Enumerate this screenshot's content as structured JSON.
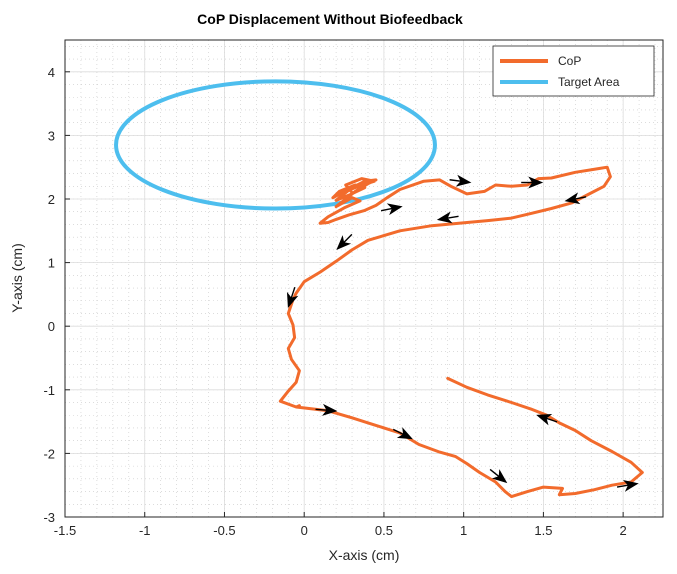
{
  "chart_data": {
    "type": "line",
    "title": "CoP Displacement Without Biofeedback",
    "xlabel": "X-axis (cm)",
    "ylabel": "Y-axis (cm)",
    "xlim": [
      -1.5,
      2.25
    ],
    "ylim": [
      -3,
      4.5
    ],
    "xticks": [
      -1.5,
      -1,
      -0.5,
      0,
      0.5,
      1,
      1.5,
      2
    ],
    "xtick_labels": [
      "-1.5",
      "-1",
      "-0.5",
      "0",
      "0.5",
      "1",
      "1.5",
      "2"
    ],
    "yticks": [
      -3,
      -2,
      -1,
      0,
      1,
      2,
      3,
      4
    ],
    "ytick_labels": [
      "-3",
      "-2",
      "-1",
      "0",
      "1",
      "2",
      "3",
      "4"
    ],
    "grid": true,
    "minor_grid": true,
    "legend_position": "top-right",
    "legend": [
      "CoP",
      "Target Area"
    ],
    "series": [
      {
        "name": "CoP",
        "color": "#F26B2C",
        "points": [
          [
            0.9,
            -0.82
          ],
          [
            1.02,
            -0.96
          ],
          [
            1.15,
            -1.08
          ],
          [
            1.3,
            -1.2
          ],
          [
            1.42,
            -1.3
          ],
          [
            1.52,
            -1.4
          ],
          [
            1.6,
            -1.52
          ],
          [
            1.7,
            -1.64
          ],
          [
            1.8,
            -1.8
          ],
          [
            1.93,
            -1.97
          ],
          [
            2.05,
            -2.14
          ],
          [
            2.12,
            -2.3
          ],
          [
            2.05,
            -2.45
          ],
          [
            1.93,
            -2.5
          ],
          [
            1.82,
            -2.57
          ],
          [
            1.7,
            -2.63
          ],
          [
            1.6,
            -2.65
          ],
          [
            1.62,
            -2.55
          ],
          [
            1.5,
            -2.53
          ],
          [
            1.4,
            -2.6
          ],
          [
            1.3,
            -2.68
          ],
          [
            1.26,
            -2.6
          ],
          [
            1.2,
            -2.45
          ],
          [
            1.1,
            -2.3
          ],
          [
            1.02,
            -2.16
          ],
          [
            0.95,
            -2.05
          ],
          [
            0.85,
            -1.98
          ],
          [
            0.72,
            -1.86
          ],
          [
            0.6,
            -1.68
          ],
          [
            0.45,
            -1.56
          ],
          [
            0.3,
            -1.44
          ],
          [
            0.15,
            -1.33
          ],
          [
            0.05,
            -1.3
          ],
          [
            -0.05,
            -1.27
          ],
          [
            -0.03,
            -1.25
          ],
          [
            -0.05,
            -1.27
          ],
          [
            -0.15,
            -1.18
          ],
          [
            -0.1,
            -1.02
          ],
          [
            -0.05,
            -0.88
          ],
          [
            -0.03,
            -0.7
          ],
          [
            -0.08,
            -0.52
          ],
          [
            -0.1,
            -0.35
          ],
          [
            -0.06,
            -0.18
          ],
          [
            -0.07,
            0.02
          ],
          [
            -0.1,
            0.2
          ],
          [
            -0.07,
            0.42
          ],
          [
            -0.05,
            0.52
          ],
          [
            0.0,
            0.7
          ],
          [
            0.1,
            0.85
          ],
          [
            0.2,
            1.02
          ],
          [
            0.3,
            1.2
          ],
          [
            0.4,
            1.35
          ],
          [
            0.6,
            1.5
          ],
          [
            0.8,
            1.58
          ],
          [
            0.97,
            1.62
          ],
          [
            1.15,
            1.66
          ],
          [
            1.3,
            1.7
          ],
          [
            1.42,
            1.77
          ],
          [
            1.55,
            1.85
          ],
          [
            1.68,
            1.94
          ],
          [
            1.78,
            2.07
          ],
          [
            1.88,
            2.2
          ],
          [
            1.92,
            2.35
          ],
          [
            1.9,
            2.5
          ],
          [
            1.85,
            2.48
          ],
          [
            1.7,
            2.42
          ],
          [
            1.55,
            2.33
          ],
          [
            1.47,
            2.32
          ],
          [
            1.4,
            2.22
          ],
          [
            1.3,
            2.2
          ],
          [
            1.2,
            2.22
          ],
          [
            1.13,
            2.12
          ],
          [
            1.02,
            2.08
          ],
          [
            0.92,
            2.2
          ],
          [
            0.85,
            2.3
          ],
          [
            0.75,
            2.28
          ],
          [
            0.6,
            2.15
          ],
          [
            0.52,
            2.02
          ],
          [
            0.45,
            1.9
          ],
          [
            0.38,
            1.82
          ],
          [
            0.28,
            1.75
          ],
          [
            0.2,
            1.68
          ],
          [
            0.15,
            1.63
          ],
          [
            0.1,
            1.62
          ],
          [
            0.15,
            1.72
          ],
          [
            0.25,
            1.86
          ],
          [
            0.35,
            1.97
          ],
          [
            0.3,
            2.02
          ],
          [
            0.25,
            1.95
          ],
          [
            0.2,
            1.88
          ],
          [
            0.25,
            1.98
          ],
          [
            0.32,
            2.12
          ],
          [
            0.4,
            2.24
          ],
          [
            0.45,
            2.3
          ],
          [
            0.38,
            2.28
          ],
          [
            0.3,
            2.18
          ],
          [
            0.25,
            2.08
          ],
          [
            0.2,
            1.98
          ],
          [
            0.28,
            2.06
          ],
          [
            0.38,
            2.18
          ],
          [
            0.32,
            2.22
          ],
          [
            0.22,
            2.12
          ],
          [
            0.18,
            2.02
          ],
          [
            0.24,
            2.1
          ],
          [
            0.34,
            2.2
          ],
          [
            0.44,
            2.28
          ],
          [
            0.36,
            2.32
          ],
          [
            0.26,
            2.22
          ],
          [
            0.3,
            2.1
          ]
        ]
      },
      {
        "name": "Target Area",
        "color": "#4DBEEE",
        "shape": "ellipse",
        "center": [
          -0.18,
          2.85
        ],
        "radius_x": 1.0,
        "radius_y": 1.0
      }
    ],
    "direction_arrows": [
      {
        "at": [
          1.52,
          -1.45
        ],
        "direction": [
          -0.6,
          0.2
        ]
      },
      {
        "at": [
          2.03,
          -2.5
        ],
        "direction": [
          0.6,
          0.1
        ]
      },
      {
        "at": [
          1.22,
          -2.36
        ],
        "direction": [
          0.5,
          -0.4
        ]
      },
      {
        "at": [
          0.62,
          -1.7
        ],
        "direction": [
          0.5,
          -0.25
        ]
      },
      {
        "at": [
          0.14,
          -1.32
        ],
        "direction": [
          0.6,
          -0.05
        ]
      },
      {
        "at": [
          -0.08,
          0.45
        ],
        "direction": [
          -0.2,
          -0.6
        ]
      },
      {
        "at": [
          0.25,
          1.32
        ],
        "direction": [
          -0.4,
          -0.4
        ]
      },
      {
        "at": [
          0.9,
          1.7
        ],
        "direction": [
          -0.6,
          -0.1
        ]
      },
      {
        "at": [
          0.55,
          1.85
        ],
        "direction": [
          0.6,
          0.12
        ]
      },
      {
        "at": [
          0.98,
          2.28
        ],
        "direction": [
          0.6,
          -0.08
        ]
      },
      {
        "at": [
          1.43,
          2.26
        ],
        "direction": [
          0.6,
          0.0
        ]
      },
      {
        "at": [
          1.7,
          2.0
        ],
        "direction": [
          -0.6,
          -0.12
        ]
      }
    ]
  }
}
